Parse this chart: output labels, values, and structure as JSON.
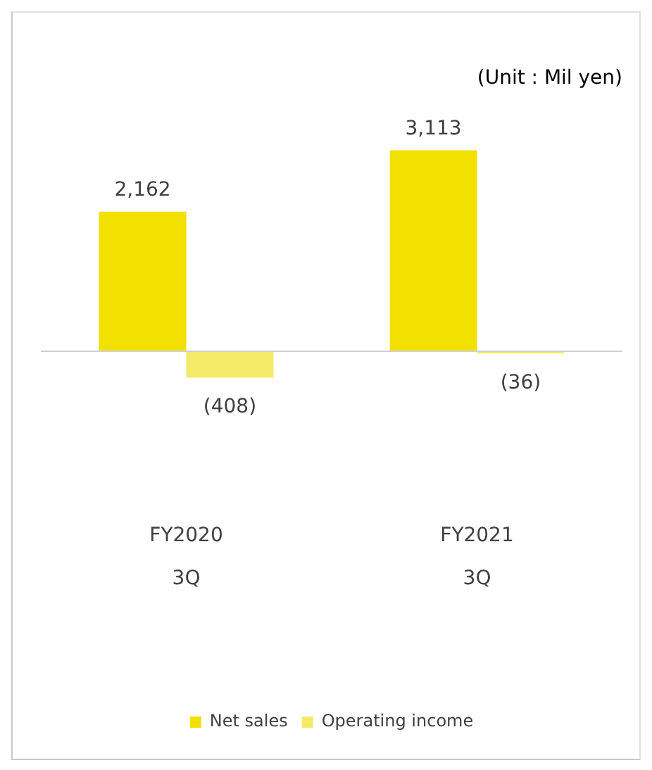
{
  "chart_data": {
    "type": "bar",
    "categories": [
      "FY2020 3Q",
      "FY2021 3Q"
    ],
    "series": [
      {
        "name": "Net sales",
        "color": "#f2e100",
        "values": [
          2162,
          3113
        ],
        "value_labels": [
          "2,162",
          "3,113"
        ]
      },
      {
        "name": "Operating income",
        "color": "#f5e96a",
        "values": [
          -408,
          -36
        ],
        "value_labels": [
          "(408)",
          "(36)"
        ]
      }
    ],
    "annotations": [
      "(Unit : Mil yen)"
    ],
    "legend": "bottom",
    "grid": false
  }
}
